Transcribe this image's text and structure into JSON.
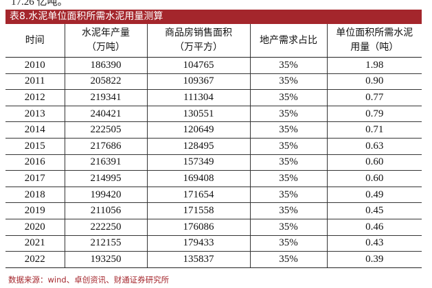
{
  "cut_text": "17.26 亿吨。",
  "table_title": "表8.水泥单位面积所需水泥用量测算",
  "headers": [
    {
      "line1": "时间",
      "line2": ""
    },
    {
      "line1": "水泥年产量",
      "line2": "（万吨）"
    },
    {
      "line1": "商品房销售面积",
      "line2": "（万平方）"
    },
    {
      "line1": "地产需求占比",
      "line2": ""
    },
    {
      "line1": "单位面积所需水泥",
      "line2": "用量（吨）"
    }
  ],
  "rows": [
    [
      "2010",
      "186390",
      "104765",
      "35%",
      "1.98"
    ],
    [
      "2011",
      "205822",
      "109367",
      "35%",
      "0.90"
    ],
    [
      "2012",
      "219341",
      "111304",
      "35%",
      "0.77"
    ],
    [
      "2013",
      "240421",
      "130551",
      "35%",
      "0.79"
    ],
    [
      "2014",
      "222505",
      "120649",
      "35%",
      "0.71"
    ],
    [
      "2015",
      "217686",
      "128495",
      "35%",
      "0.63"
    ],
    [
      "2016",
      "216391",
      "157349",
      "35%",
      "0.60"
    ],
    [
      "2017",
      "214995",
      "169408",
      "35%",
      "0.60"
    ],
    [
      "2018",
      "199420",
      "171654",
      "35%",
      "0.49"
    ],
    [
      "2019",
      "211056",
      "171558",
      "35%",
      "0.45"
    ],
    [
      "2020",
      "222250",
      "176086",
      "35%",
      "0.46"
    ],
    [
      "2021",
      "212155",
      "179433",
      "35%",
      "0.43"
    ],
    [
      "2022",
      "193250",
      "135837",
      "35%",
      "0.39"
    ]
  ],
  "source": "数据来源：wind、卓创资讯、财通证券研究所",
  "colors": {
    "accent": "#a4262c"
  }
}
